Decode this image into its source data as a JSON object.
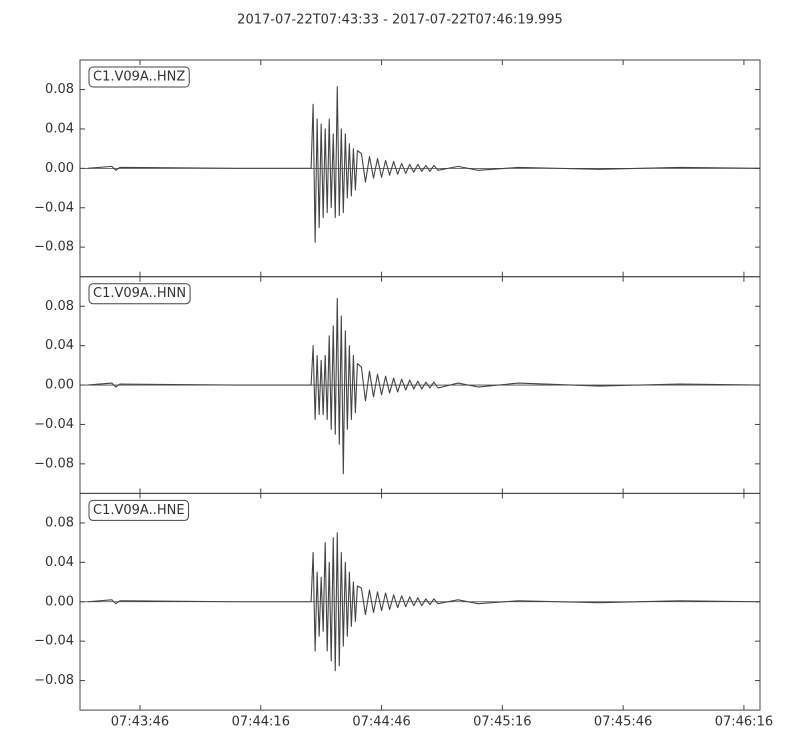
{
  "chart_data": [
    {
      "type": "line",
      "title": "2017-07-22T07:43:33  -  2017-07-22T07:46:19.995",
      "label": "C1.V09A..HNZ",
      "color": "#444444",
      "xlim": [
        "2017-07-22T07:43:31.1",
        "2017-07-22T07:46:19.995"
      ],
      "ylim": [
        -0.11,
        0.11
      ],
      "yticks": [
        {
          "value": -0.08,
          "label": "−0.08"
        },
        {
          "value": -0.04,
          "label": "−0.04"
        },
        {
          "value": 0,
          "label": "0.00"
        },
        {
          "value": 0.04,
          "label": "0.04"
        },
        {
          "value": 0.08,
          "label": "0.08"
        }
      ],
      "x": [
        "2017-07-22T07:43:33",
        "2017-07-22T07:43:39",
        "2017-07-22T07:43:40",
        "2017-07-22T07:43:41",
        "2017-07-22T07:44:10",
        "2017-07-22T07:44:28.5",
        "2017-07-22T07:44:29",
        "2017-07-22T07:44:29.5",
        "2017-07-22T07:44:30",
        "2017-07-22T07:44:30.5",
        "2017-07-22T07:44:31",
        "2017-07-22T07:44:31.5",
        "2017-07-22T07:44:32",
        "2017-07-22T07:44:32.5",
        "2017-07-22T07:44:33",
        "2017-07-22T07:44:33.5",
        "2017-07-22T07:44:34",
        "2017-07-22T07:44:34.5",
        "2017-07-22T07:44:35",
        "2017-07-22T07:44:35.5",
        "2017-07-22T07:44:36",
        "2017-07-22T07:44:36.5",
        "2017-07-22T07:44:37",
        "2017-07-22T07:44:37.5",
        "2017-07-22T07:44:38",
        "2017-07-22T07:44:38.5",
        "2017-07-22T07:44:39",
        "2017-07-22T07:44:39.5",
        "2017-07-22T07:44:40",
        "2017-07-22T07:44:41",
        "2017-07-22T07:44:42",
        "2017-07-22T07:44:43",
        "2017-07-22T07:44:44",
        "2017-07-22T07:44:45",
        "2017-07-22T07:44:46",
        "2017-07-22T07:44:47",
        "2017-07-22T07:44:48",
        "2017-07-22T07:44:49",
        "2017-07-22T07:44:50",
        "2017-07-22T07:44:51",
        "2017-07-22T07:44:52",
        "2017-07-22T07:44:53",
        "2017-07-22T07:44:54",
        "2017-07-22T07:44:55",
        "2017-07-22T07:44:56",
        "2017-07-22T07:44:57",
        "2017-07-22T07:44:58",
        "2017-07-22T07:44:59",
        "2017-07-22T07:45:00",
        "2017-07-22T07:45:05",
        "2017-07-22T07:45:10",
        "2017-07-22T07:45:20",
        "2017-07-22T07:45:40",
        "2017-07-22T07:46:00",
        "2017-07-22T07:46:19.995"
      ],
      "values": [
        0,
        0.002,
        -0.002,
        0.001,
        0,
        0,
        0.065,
        -0.075,
        0.05,
        -0.06,
        0.045,
        -0.05,
        0.04,
        -0.045,
        0.05,
        -0.04,
        0.035,
        -0.05,
        0.083,
        -0.048,
        0.04,
        -0.045,
        0.035,
        -0.03,
        0.025,
        -0.028,
        0.02,
        -0.022,
        0.018,
        0.015,
        -0.014,
        0.012,
        -0.01,
        0.01,
        -0.009,
        0.008,
        -0.007,
        0.007,
        -0.006,
        0.005,
        -0.005,
        0.004,
        -0.004,
        0.004,
        -0.003,
        0.003,
        -0.003,
        0.003,
        -0.002,
        0.002,
        -0.002,
        0.001,
        -0.001,
        0.001,
        0
      ]
    },
    {
      "type": "line",
      "label": "C1.V09A..HNN",
      "color": "#444444",
      "xlim": [
        "2017-07-22T07:43:31.1",
        "2017-07-22T07:46:19.995"
      ],
      "ylim": [
        -0.11,
        0.11
      ],
      "yticks": [
        {
          "value": -0.08,
          "label": "−0.08"
        },
        {
          "value": -0.04,
          "label": "−0.04"
        },
        {
          "value": 0,
          "label": "0.00"
        },
        {
          "value": 0.04,
          "label": "0.04"
        },
        {
          "value": 0.08,
          "label": "0.08"
        }
      ],
      "x": [
        "2017-07-22T07:43:33",
        "2017-07-22T07:43:39",
        "2017-07-22T07:43:40",
        "2017-07-22T07:43:41",
        "2017-07-22T07:44:10",
        "2017-07-22T07:44:28.5",
        "2017-07-22T07:44:29",
        "2017-07-22T07:44:29.5",
        "2017-07-22T07:44:30",
        "2017-07-22T07:44:30.5",
        "2017-07-22T07:44:31",
        "2017-07-22T07:44:31.5",
        "2017-07-22T07:44:32",
        "2017-07-22T07:44:32.5",
        "2017-07-22T07:44:33",
        "2017-07-22T07:44:33.5",
        "2017-07-22T07:44:34",
        "2017-07-22T07:44:34.5",
        "2017-07-22T07:44:35",
        "2017-07-22T07:44:35.5",
        "2017-07-22T07:44:36",
        "2017-07-22T07:44:36.5",
        "2017-07-22T07:44:37",
        "2017-07-22T07:44:37.5",
        "2017-07-22T07:44:38",
        "2017-07-22T07:44:38.5",
        "2017-07-22T07:44:39",
        "2017-07-22T07:44:39.5",
        "2017-07-22T07:44:40",
        "2017-07-22T07:44:41",
        "2017-07-22T07:44:42",
        "2017-07-22T07:44:43",
        "2017-07-22T07:44:44",
        "2017-07-22T07:44:45",
        "2017-07-22T07:44:46",
        "2017-07-22T07:44:47",
        "2017-07-22T07:44:48",
        "2017-07-22T07:44:49",
        "2017-07-22T07:44:50",
        "2017-07-22T07:44:51",
        "2017-07-22T07:44:52",
        "2017-07-22T07:44:53",
        "2017-07-22T07:44:54",
        "2017-07-22T07:44:55",
        "2017-07-22T07:44:56",
        "2017-07-22T07:44:57",
        "2017-07-22T07:44:58",
        "2017-07-22T07:44:59",
        "2017-07-22T07:45:00",
        "2017-07-22T07:45:05",
        "2017-07-22T07:45:10",
        "2017-07-22T07:45:20",
        "2017-07-22T07:45:40",
        "2017-07-22T07:46:00",
        "2017-07-22T07:46:19.995"
      ],
      "values": [
        0,
        0.002,
        -0.002,
        0.001,
        0,
        0,
        0.04,
        -0.035,
        0.03,
        -0.03,
        0.025,
        -0.03,
        0.03,
        -0.035,
        0.05,
        -0.045,
        0.06,
        -0.05,
        0.088,
        -0.06,
        0.07,
        -0.09,
        0.055,
        -0.045,
        0.04,
        -0.035,
        0.03,
        -0.028,
        0.022,
        0.018,
        -0.016,
        0.014,
        -0.012,
        0.011,
        -0.01,
        0.009,
        -0.008,
        0.007,
        -0.007,
        0.006,
        -0.005,
        0.005,
        -0.004,
        0.004,
        -0.004,
        0.003,
        -0.003,
        0.003,
        -0.003,
        0.002,
        -0.002,
        0.002,
        -0.001,
        0.001,
        0
      ]
    },
    {
      "type": "line",
      "label": "C1.V09A..HNE",
      "color": "#444444",
      "xlim": [
        "2017-07-22T07:43:31.1",
        "2017-07-22T07:46:19.995"
      ],
      "ylim": [
        -0.11,
        0.11
      ],
      "yticks": [
        {
          "value": -0.08,
          "label": "−0.08"
        },
        {
          "value": -0.04,
          "label": "−0.04"
        },
        {
          "value": 0,
          "label": "0.00"
        },
        {
          "value": 0.04,
          "label": "0.04"
        },
        {
          "value": 0.08,
          "label": "0.08"
        }
      ],
      "xticks": [
        {
          "value": "2017-07-22T07:43:46",
          "label": "07:43:46"
        },
        {
          "value": "2017-07-22T07:44:16",
          "label": "07:44:16"
        },
        {
          "value": "2017-07-22T07:44:46",
          "label": "07:44:46"
        },
        {
          "value": "2017-07-22T07:45:16",
          "label": "07:45:16"
        },
        {
          "value": "2017-07-22T07:45:46",
          "label": "07:45:46"
        },
        {
          "value": "2017-07-22T07:46:16",
          "label": "07:46:16"
        }
      ],
      "x": [
        "2017-07-22T07:43:33",
        "2017-07-22T07:43:39",
        "2017-07-22T07:43:40",
        "2017-07-22T07:43:41",
        "2017-07-22T07:44:10",
        "2017-07-22T07:44:28.5",
        "2017-07-22T07:44:29",
        "2017-07-22T07:44:29.5",
        "2017-07-22T07:44:30",
        "2017-07-22T07:44:30.5",
        "2017-07-22T07:44:31",
        "2017-07-22T07:44:31.5",
        "2017-07-22T07:44:32",
        "2017-07-22T07:44:32.5",
        "2017-07-22T07:44:33",
        "2017-07-22T07:44:33.5",
        "2017-07-22T07:44:34",
        "2017-07-22T07:44:34.5",
        "2017-07-22T07:44:35",
        "2017-07-22T07:44:35.5",
        "2017-07-22T07:44:36",
        "2017-07-22T07:44:36.5",
        "2017-07-22T07:44:37",
        "2017-07-22T07:44:37.5",
        "2017-07-22T07:44:38",
        "2017-07-22T07:44:38.5",
        "2017-07-22T07:44:39",
        "2017-07-22T07:44:39.5",
        "2017-07-22T07:44:40",
        "2017-07-22T07:44:41",
        "2017-07-22T07:44:42",
        "2017-07-22T07:44:43",
        "2017-07-22T07:44:44",
        "2017-07-22T07:44:45",
        "2017-07-22T07:44:46",
        "2017-07-22T07:44:47",
        "2017-07-22T07:44:48",
        "2017-07-22T07:44:49",
        "2017-07-22T07:44:50",
        "2017-07-22T07:44:51",
        "2017-07-22T07:44:52",
        "2017-07-22T07:44:53",
        "2017-07-22T07:44:54",
        "2017-07-22T07:44:55",
        "2017-07-22T07:44:56",
        "2017-07-22T07:44:57",
        "2017-07-22T07:44:58",
        "2017-07-22T07:44:59",
        "2017-07-22T07:45:00",
        "2017-07-22T07:45:05",
        "2017-07-22T07:45:10",
        "2017-07-22T07:45:20",
        "2017-07-22T07:45:40",
        "2017-07-22T07:46:00",
        "2017-07-22T07:46:19.995"
      ],
      "values": [
        0,
        0.002,
        -0.002,
        0.001,
        0,
        0,
        0.05,
        -0.05,
        0.03,
        -0.035,
        0.025,
        -0.03,
        0.06,
        -0.05,
        0.04,
        -0.06,
        0.065,
        -0.07,
        0.07,
        -0.065,
        0.05,
        -0.045,
        0.04,
        -0.035,
        0.03,
        -0.025,
        0.02,
        -0.02,
        0.016,
        0.014,
        -0.013,
        0.012,
        -0.011,
        0.01,
        -0.009,
        0.009,
        -0.008,
        0.007,
        -0.006,
        0.006,
        -0.005,
        0.005,
        -0.004,
        0.004,
        -0.004,
        0.003,
        -0.003,
        0.003,
        -0.002,
        0.002,
        -0.002,
        0.001,
        -0.001,
        0.001,
        0
      ]
    }
  ]
}
